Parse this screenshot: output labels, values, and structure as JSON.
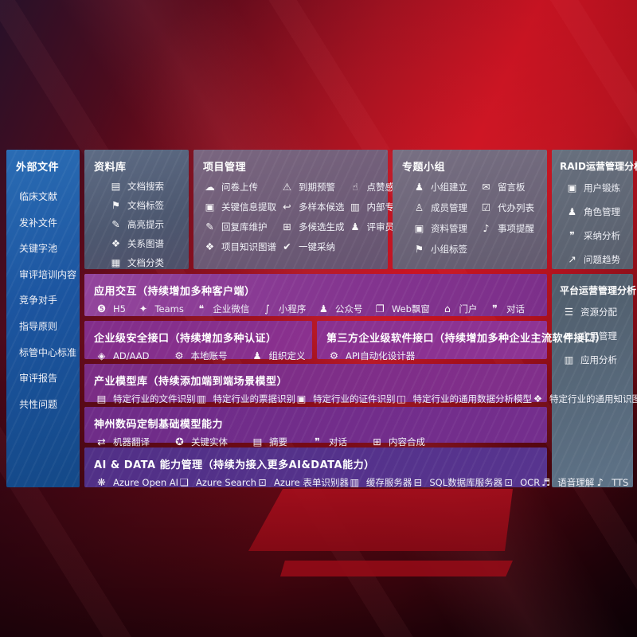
{
  "colors": {
    "background_red": "#c01120",
    "sidebar_blue": "#1c55a0",
    "panel_slate": "#4d5870",
    "band_purple": "#83348f",
    "band_indigo": "#513087",
    "text": "#ffffff"
  },
  "sidebar": {
    "title": "外部文件",
    "items": [
      "临床文献",
      "发补文件",
      "关键字池",
      "审评培训内容",
      "竞争对手",
      "指导原则",
      "标管中心标准",
      "审评报告",
      "共性问题"
    ]
  },
  "panels": {
    "library": {
      "title": "资料库",
      "items": [
        {
          "label": "文档搜索",
          "glyph": "▤"
        },
        {
          "label": "文档标签",
          "glyph": "⚑"
        },
        {
          "label": "高亮提示",
          "glyph": "✎"
        },
        {
          "label": "关系图谱",
          "glyph": "❖"
        },
        {
          "label": "文档分类",
          "glyph": "▦"
        }
      ]
    },
    "project": {
      "title": "项目管理",
      "items": [
        {
          "label": "问卷上传",
          "glyph": "☁"
        },
        {
          "label": "关键信息提取",
          "glyph": "▣"
        },
        {
          "label": "回复库维护",
          "glyph": "✎"
        },
        {
          "label": "项目知识图谱",
          "glyph": "❖"
        },
        {
          "label": "到期预警",
          "glyph": "⚠"
        },
        {
          "label": "多样本候选",
          "glyph": "↩"
        },
        {
          "label": "多候选生成",
          "glyph": "⊞"
        },
        {
          "label": "一键采纳",
          "glyph": "✔"
        },
        {
          "label": "点赞感谢",
          "glyph": "☝"
        },
        {
          "label": "内部专家排名",
          "glyph": "▥"
        },
        {
          "label": "评审员画像",
          "glyph": "♟"
        }
      ]
    },
    "groups": {
      "title": "专题小组",
      "items": [
        {
          "label": "小组建立",
          "glyph": "♟"
        },
        {
          "label": "成员管理",
          "glyph": "♙"
        },
        {
          "label": "资料管理",
          "glyph": "▣"
        },
        {
          "label": "小组标签",
          "glyph": "⚑"
        },
        {
          "label": "留言板",
          "glyph": "✉"
        },
        {
          "label": "代办列表",
          "glyph": "☑"
        },
        {
          "label": "事项提醒",
          "glyph": "♪"
        }
      ]
    },
    "raid": {
      "title": "RAID运营管理分析",
      "items": [
        {
          "label": "用户锻炼",
          "glyph": "▣"
        },
        {
          "label": "角色管理",
          "glyph": "♟"
        },
        {
          "label": "采纳分析",
          "glyph": "❞"
        },
        {
          "label": "问题趋势",
          "glyph": "↗"
        }
      ]
    },
    "platform": {
      "title": "平台运营管理分析",
      "items": [
        {
          "label": "资源分配",
          "glyph": "☰"
        },
        {
          "label": "应用管理",
          "glyph": "⊞"
        },
        {
          "label": "应用分析",
          "glyph": "▥"
        }
      ]
    }
  },
  "bands": {
    "interaction": {
      "title": "应用交互（持续增加多种客户端）",
      "items": [
        {
          "label": "H5",
          "glyph": "❺"
        },
        {
          "label": "Teams",
          "glyph": "✦"
        },
        {
          "label": "企业微信",
          "glyph": "❝"
        },
        {
          "label": "小程序",
          "glyph": "∫"
        },
        {
          "label": "公众号",
          "glyph": "♟"
        },
        {
          "label": "Web飘窗",
          "glyph": "❐"
        },
        {
          "label": "门户",
          "glyph": "⌂"
        },
        {
          "label": "对话",
          "glyph": "❞"
        }
      ]
    },
    "security": {
      "title": "企业级安全接口（持续增加多种认证）",
      "items": [
        {
          "label": "AD/AAD",
          "glyph": "◈"
        },
        {
          "label": "本地账号",
          "glyph": "⚙"
        },
        {
          "label": "组织定义",
          "glyph": "♟"
        }
      ]
    },
    "thirdparty": {
      "title": "第三方企业级软件接口（持续增加多种企业主流软件接口）",
      "items": [
        {
          "label": "API自动化设计器",
          "glyph": "⚙"
        }
      ]
    },
    "industry": {
      "title": "产业模型库（持续添加端到端场景模型）",
      "items": [
        {
          "label": "特定行业的文件识别",
          "glyph": "▤"
        },
        {
          "label": "特定行业的票据识别",
          "glyph": "▥"
        },
        {
          "label": "特定行业的证件识别",
          "glyph": "▣"
        },
        {
          "label": "特定行业的通用数据分析模型",
          "glyph": "◫"
        },
        {
          "label": "特定行业的通用知识图谱模型",
          "glyph": "❖"
        }
      ]
    },
    "foundation": {
      "title": "神州数码定制基础模型能力",
      "items": [
        {
          "label": "机器翻译",
          "glyph": "⇄"
        },
        {
          "label": "关键实体",
          "glyph": "✪"
        },
        {
          "label": "摘要",
          "glyph": "▤"
        },
        {
          "label": "对话",
          "glyph": "❞"
        },
        {
          "label": "内容合成",
          "glyph": "⊞"
        }
      ]
    },
    "aidata": {
      "title": "AI & DATA 能力管理（持续为接入更多AI&DATA能力）",
      "items": [
        {
          "label": "Azure Open AI",
          "glyph": "❋"
        },
        {
          "label": "Azure Search",
          "glyph": "❏"
        },
        {
          "label": "Azure 表单识别器",
          "glyph": "⊡"
        },
        {
          "label": "缓存服务器",
          "glyph": "▥"
        },
        {
          "label": "SQL数据库服务器",
          "glyph": "⊟"
        },
        {
          "label": "OCR",
          "glyph": "⊡"
        },
        {
          "label": "语音理解",
          "glyph": "♬"
        },
        {
          "label": "TTS",
          "glyph": "♪"
        }
      ]
    }
  }
}
